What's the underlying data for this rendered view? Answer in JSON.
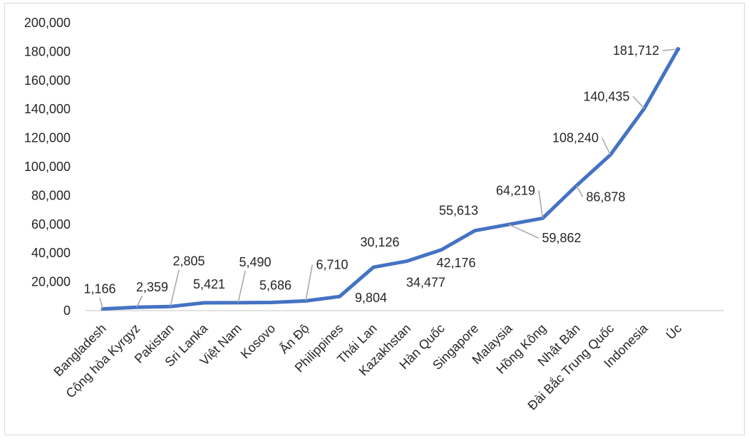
{
  "colors": {
    "line": "#4472C4",
    "axis": "#d9d9d9",
    "leader": "#a6a6a6",
    "text": "#262626"
  },
  "chart_data": {
    "type": "line",
    "title": "",
    "xlabel": "",
    "ylabel": "",
    "ylim": [
      0,
      200000
    ],
    "yticks": [
      "0",
      "20,000",
      "40,000",
      "60,000",
      "80,000",
      "100,000",
      "120,000",
      "140,000",
      "160,000",
      "180,000",
      "200,000"
    ],
    "grid": false,
    "legend": "none",
    "categories": [
      "Bangladesh",
      "Cộng hòa Kyrgyz",
      "Pakistan",
      "Sri Lanka",
      "Việt Nam",
      "Kosovo",
      "Ấn Độ",
      "Philippines",
      "Thái Lan",
      "Kazakhstan",
      "Hàn Quốc",
      "Singapore",
      "Malaysia",
      "Hồng Kông",
      "Nhật Bản",
      "Đài Bắc Trung Quốc",
      "Indonesia",
      "Úc"
    ],
    "values": [
      1166,
      2359,
      2805,
      5421,
      5490,
      5686,
      6710,
      9804,
      30126,
      34477,
      42176,
      55613,
      59862,
      64219,
      86878,
      108240,
      140435,
      181712
    ],
    "data_labels": [
      "1,166",
      "2,359",
      "2,805",
      "5,421",
      "5,490",
      "5,686",
      "6,710",
      "9,804",
      "30,126",
      "34,477",
      "42,176",
      "55,613",
      "59,862",
      "64,219",
      "86,878",
      "108,240",
      "140,435",
      "181,712"
    ]
  }
}
